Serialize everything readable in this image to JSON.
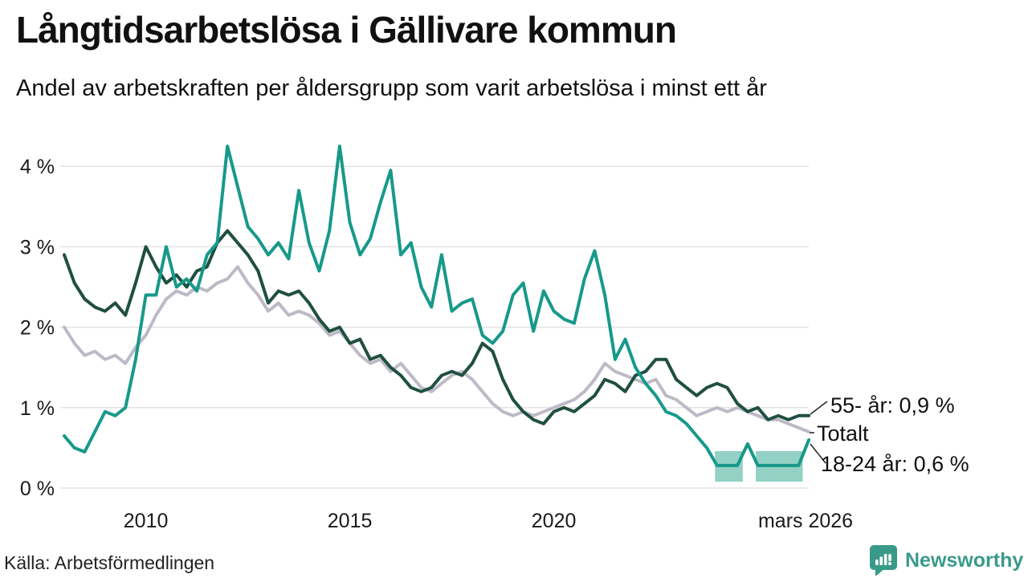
{
  "header": {
    "title": "Långtidsarbetslösa i Gällivare kommun",
    "subtitle": "Andel av arbetskraften per åldersgrupp som varit arbetslösa i minst ett år"
  },
  "footer": {
    "source": "Källa: Arbetsförmedlingen",
    "brand": "Newsworthy",
    "brand_color": "#3a9a8a",
    "brand_icon": "bar-chart-speech-bubble"
  },
  "chart_data": {
    "type": "line",
    "grid": "horizontal-only",
    "x_axis": {
      "start": 2008,
      "step": 0.25,
      "range": [
        2008,
        2026.25
      ],
      "ticks": [
        {
          "label": "2010",
          "year": 2010
        },
        {
          "label": "2015",
          "year": 2015
        },
        {
          "label": "2020",
          "year": 2020
        },
        {
          "label": "mars 2026",
          "year": 2026.17
        }
      ]
    },
    "y_axis": {
      "unit": "%",
      "range": [
        0,
        4.4
      ],
      "ticks": [
        {
          "label": "0 %",
          "value": 0
        },
        {
          "label": "1 %",
          "value": 1
        },
        {
          "label": "2 %",
          "value": 2
        },
        {
          "label": "3 %",
          "value": 3
        },
        {
          "label": "4 %",
          "value": 4
        }
      ]
    },
    "series": [
      {
        "name": "Totalt",
        "color": "#bdbac7",
        "values": [
          2.0,
          1.8,
          1.65,
          1.7,
          1.6,
          1.65,
          1.55,
          1.75,
          1.9,
          2.15,
          2.35,
          2.45,
          2.4,
          2.5,
          2.45,
          2.55,
          2.6,
          2.75,
          2.55,
          2.4,
          2.2,
          2.3,
          2.15,
          2.2,
          2.15,
          2.05,
          1.9,
          1.95,
          1.8,
          1.65,
          1.55,
          1.6,
          1.45,
          1.55,
          1.4,
          1.25,
          1.2,
          1.3,
          1.4,
          1.45,
          1.35,
          1.2,
          1.05,
          0.95,
          0.9,
          0.95,
          0.9,
          0.95,
          1.0,
          1.05,
          1.1,
          1.2,
          1.35,
          1.55,
          1.45,
          1.4,
          1.35,
          1.3,
          1.35,
          1.15,
          1.1,
          1.0,
          0.9,
          0.95,
          1.0,
          0.95,
          1.0,
          0.95,
          0.9,
          0.85,
          0.85,
          0.8,
          0.75,
          0.7
        ]
      },
      {
        "name": "55- år",
        "color": "#1f4f40",
        "values": [
          2.9,
          2.55,
          2.35,
          2.25,
          2.2,
          2.3,
          2.15,
          2.55,
          3.0,
          2.75,
          2.55,
          2.65,
          2.5,
          2.7,
          2.75,
          3.05,
          3.2,
          3.05,
          2.9,
          2.7,
          2.3,
          2.45,
          2.4,
          2.45,
          2.3,
          2.1,
          1.95,
          2.0,
          1.8,
          1.85,
          1.6,
          1.65,
          1.5,
          1.4,
          1.25,
          1.2,
          1.25,
          1.4,
          1.45,
          1.4,
          1.55,
          1.8,
          1.7,
          1.35,
          1.1,
          0.95,
          0.85,
          0.8,
          0.95,
          1.0,
          0.95,
          1.05,
          1.15,
          1.35,
          1.3,
          1.2,
          1.4,
          1.45,
          1.6,
          1.6,
          1.35,
          1.25,
          1.15,
          1.25,
          1.3,
          1.25,
          1.05,
          0.95,
          1.0,
          0.85,
          0.9,
          0.85,
          0.9,
          0.9
        ]
      },
      {
        "name": "18-24 år",
        "color": "#17998a",
        "values": [
          0.65,
          0.5,
          0.45,
          0.7,
          0.95,
          0.9,
          1.0,
          1.6,
          2.4,
          2.4,
          3.0,
          2.5,
          2.6,
          2.45,
          2.9,
          3.05,
          4.25,
          3.75,
          3.25,
          3.1,
          2.9,
          3.05,
          2.85,
          3.7,
          3.05,
          2.7,
          3.2,
          4.25,
          3.3,
          2.9,
          3.1,
          3.55,
          3.95,
          2.9,
          3.05,
          2.5,
          2.25,
          2.9,
          2.2,
          2.3,
          2.35,
          1.9,
          1.8,
          1.95,
          2.4,
          2.55,
          1.95,
          2.45,
          2.2,
          2.1,
          2.05,
          2.6,
          2.95,
          2.4,
          1.6,
          1.85,
          1.5,
          1.3,
          1.15,
          0.95,
          0.9,
          0.8,
          0.65,
          0.5,
          0.28,
          0.28,
          0.28,
          0.55,
          0.28,
          0.28,
          0.28,
          0.28,
          0.28,
          0.6
        ]
      }
    ],
    "censored_band": {
      "color": "#92d1c4",
      "series": "18-24 år",
      "segments": [
        {
          "from": 2023.95,
          "to": 2024.63,
          "low": 0.08,
          "high": 0.46
        },
        {
          "from": 2024.95,
          "to": 2026.1,
          "low": 0.08,
          "high": 0.46
        }
      ]
    },
    "end_labels": [
      {
        "text": "55- år: 0,9 %",
        "x": 1034,
        "y": 514,
        "line": [
          1009,
          516,
          1030,
          500
        ]
      },
      {
        "text": "Totalt",
        "x": 1017,
        "y": 549,
        "line": [
          1008,
          539,
          1014,
          539
        ]
      },
      {
        "text": "18-24 år: 0,6 %",
        "x": 1022,
        "y": 587,
        "line": [
          1009,
          553,
          1028,
          577
        ]
      }
    ]
  }
}
